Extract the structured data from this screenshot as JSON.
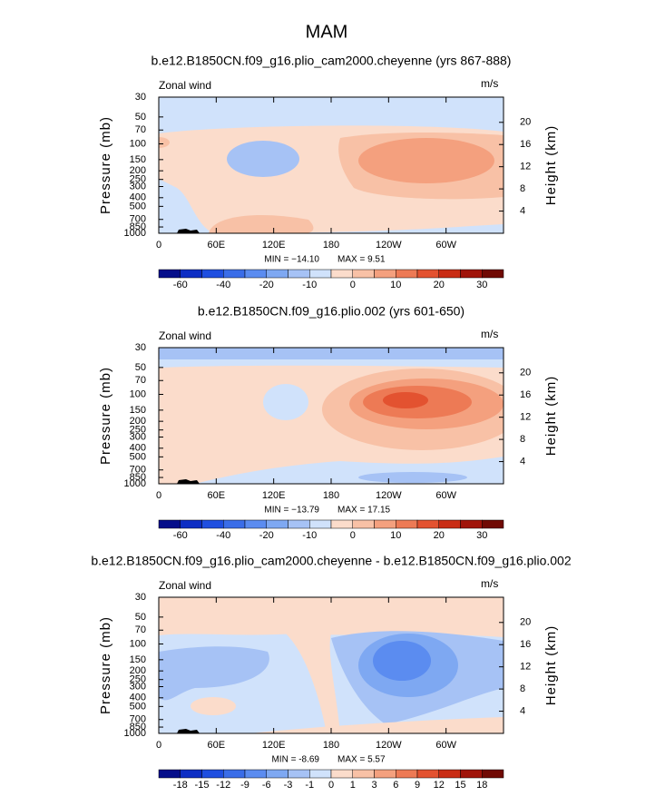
{
  "title": "MAM",
  "y_axis_label": "Pressure (mb)",
  "y2_axis_label": "Height (km)",
  "xlim": [
    0,
    360
  ],
  "ylim": [
    1000,
    30
  ],
  "pressure_ticks": [
    30,
    50,
    70,
    100,
    150,
    200,
    250,
    300,
    400,
    500,
    700,
    850,
    1000
  ],
  "height_ticks": [
    20,
    16,
    12,
    8,
    4
  ],
  "lon_ticks": [
    0,
    {
      "value": 60,
      "label": "60E"
    },
    {
      "value": 120,
      "label": "120E"
    },
    180,
    {
      "value": 240,
      "label": "120W"
    },
    {
      "value": 300,
      "label": "60W"
    }
  ],
  "colorbar_colors": [
    "#050e8a",
    "#0d2ec4",
    "#1f4fe0",
    "#3a6de8",
    "#5b8cf0",
    "#7ea8f2",
    "#a6c2f5",
    "#d0e2fb",
    "#fbdccb",
    "#f8c1a6",
    "#f4a07e",
    "#ed7a55",
    "#e35230",
    "#c92c14",
    "#a0140a",
    "#700a04"
  ],
  "panels": [
    {
      "subtitle": "b.e12.B1850CN.f09_g16.plio_cam2000.cheyenne (yrs 867-888)",
      "variable": "Zonal wind",
      "units": "m/s",
      "min_label": "MIN = −14.10",
      "max_label": "MAX =  9.51",
      "colorbar_ticks": [
        -60,
        -40,
        -20,
        -10,
        0,
        10,
        20,
        30
      ]
    },
    {
      "subtitle": "b.e12.B1850CN.f09_g16.plio.002 (yrs 601-650)",
      "variable": "Zonal wind",
      "units": "m/s",
      "min_label": "MIN = −13.79",
      "max_label": "MAX =  17.15",
      "colorbar_ticks": [
        -60,
        -40,
        -20,
        -10,
        0,
        10,
        20,
        30
      ]
    },
    {
      "subtitle": "b.e12.B1850CN.f09_g16.plio_cam2000.cheyenne - b.e12.B1850CN.f09_g16.plio.002",
      "variable": "Zonal wind",
      "units": "m/s",
      "min_label": "MIN =  -8.69",
      "max_label": "MAX =  5.57",
      "colorbar_ticks": [
        -18,
        -15,
        -12,
        -9,
        -6,
        -3,
        -1,
        0,
        1,
        3,
        6,
        9,
        12,
        15,
        18
      ]
    }
  ]
}
